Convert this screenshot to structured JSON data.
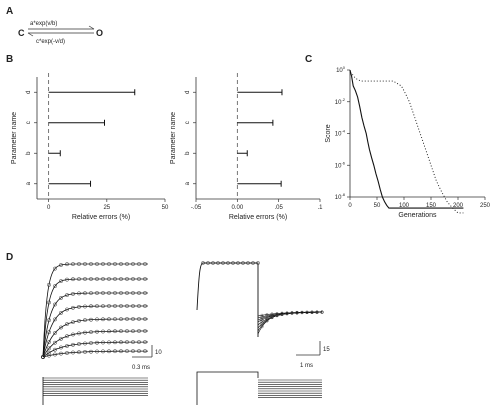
{
  "panel_labels": {
    "a": "A",
    "b": "B",
    "c": "C",
    "d": "D"
  },
  "scheme": {
    "state_left": "C",
    "state_right": "O",
    "rate_forward": "a*exp(v/b)",
    "rate_backward": "c*exp(-v/d)"
  },
  "scale_bars": {
    "d_left_time": "0.3 ms",
    "d_left_amp": "10",
    "d_right_time": "1 ms",
    "d_right_amp": "15"
  },
  "chart_data": [
    {
      "type": "bar",
      "orientation": "horizontal",
      "ylabel": "Parameter name",
      "xlabel": "Relative errors (%)",
      "categories": [
        "d",
        "c",
        "b",
        "a"
      ],
      "values": [
        37,
        24,
        5,
        18
      ],
      "xlim": [
        -5,
        50
      ],
      "xticks": [
        "0",
        "25",
        "50"
      ],
      "reference_line_x": 0
    },
    {
      "type": "bar",
      "orientation": "horizontal",
      "ylabel": "Parameter name",
      "xlabel": "Relative errors (%)",
      "categories": [
        "d",
        "c",
        "b",
        "a"
      ],
      "values": [
        0.054,
        0.043,
        0.012,
        0.053
      ],
      "xlim": [
        -0.05,
        0.1
      ],
      "xticks": [
        "-.05",
        "0.00",
        ".05",
        ".1"
      ],
      "reference_line_x": 0
    },
    {
      "type": "line",
      "xlabel": "Generations",
      "ylabel": "Score",
      "y_scale": "log",
      "xticks": [
        "0",
        "50",
        "100",
        "150",
        "200",
        "250"
      ],
      "yticks": [
        "10^0",
        "10^-2",
        "10^-4",
        "10^-6",
        "10^-8"
      ],
      "series": [
        {
          "style": "solid",
          "x": [
            0,
            3,
            6,
            10,
            14,
            18,
            22,
            26,
            30,
            33,
            36,
            40,
            44,
            48,
            52,
            56,
            60,
            64,
            68,
            72,
            80,
            100,
            150,
            200,
            210
          ],
          "y": [
            1.0,
            0.4,
            0.1,
            0.05,
            0.02,
            0.005,
            0.001,
            0.0003,
            0.0001,
            3e-05,
            1e-05,
            3e-06,
            1e-06,
            3e-07,
            1e-07,
            3e-08,
            1e-08,
            5e-09,
            3e-09,
            2e-09,
            2e-09,
            2e-09,
            2e-09,
            2e-09,
            2e-09
          ]
        },
        {
          "style": "dotted",
          "x": [
            0,
            5,
            10,
            20,
            40,
            80,
            95,
            100,
            110,
            120,
            130,
            140,
            150,
            160,
            170,
            180,
            190,
            200,
            210
          ],
          "y": [
            0.7,
            0.5,
            0.3,
            0.2,
            0.2,
            0.2,
            0.1,
            0.05,
            0.01,
            0.001,
            0.0001,
            1e-05,
            1e-06,
            1e-07,
            2e-08,
            5e-09,
            2e-09,
            1e-09,
            1e-09
          ]
        }
      ]
    },
    {
      "type": "line",
      "description_role": "activation current family",
      "time_scale": "0.3 ms",
      "amplitude_scale": "10",
      "traces": 8
    },
    {
      "type": "line",
      "description_role": "deactivation tail current family",
      "time_scale": "1 ms",
      "amplitude_scale": "15",
      "traces": 8
    }
  ]
}
